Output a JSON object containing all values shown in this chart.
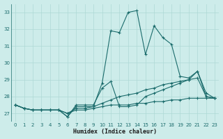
{
  "xlabel": "Humidex (Indice chaleur)",
  "xlim": [
    -0.5,
    23.5
  ],
  "ylim": [
    26.5,
    33.5
  ],
  "yticks": [
    27,
    28,
    29,
    30,
    31,
    32,
    33
  ],
  "xticks": [
    0,
    1,
    2,
    3,
    4,
    5,
    6,
    7,
    8,
    9,
    10,
    11,
    12,
    13,
    14,
    15,
    16,
    17,
    18,
    19,
    20,
    21,
    22,
    23
  ],
  "bg_color": "#cdecea",
  "line_color": "#1a6b6b",
  "grid_color": "#aed8d5",
  "lines": [
    [
      27.5,
      27.3,
      27.2,
      27.2,
      27.2,
      27.2,
      26.8,
      27.4,
      27.4,
      27.4,
      28.8,
      31.9,
      31.8,
      33.0,
      33.1,
      30.5,
      32.2,
      31.5,
      31.1,
      29.2,
      29.1,
      29.5,
      28.0,
      27.9
    ],
    [
      27.5,
      27.3,
      27.2,
      27.2,
      27.2,
      27.2,
      26.8,
      27.5,
      27.5,
      27.5,
      28.5,
      28.9,
      27.4,
      27.4,
      27.5,
      28.0,
      28.2,
      28.4,
      28.6,
      28.8,
      29.0,
      29.5,
      28.2,
      27.9
    ],
    [
      27.5,
      27.3,
      27.2,
      27.2,
      27.2,
      27.2,
      27.0,
      27.3,
      27.3,
      27.4,
      27.6,
      27.8,
      28.0,
      28.1,
      28.2,
      28.4,
      28.5,
      28.7,
      28.8,
      28.9,
      29.0,
      29.1,
      28.0,
      27.9
    ],
    [
      27.5,
      27.3,
      27.2,
      27.2,
      27.2,
      27.2,
      27.0,
      27.2,
      27.2,
      27.3,
      27.4,
      27.5,
      27.5,
      27.5,
      27.6,
      27.6,
      27.7,
      27.7,
      27.8,
      27.8,
      27.9,
      27.9,
      27.9,
      27.9
    ]
  ]
}
